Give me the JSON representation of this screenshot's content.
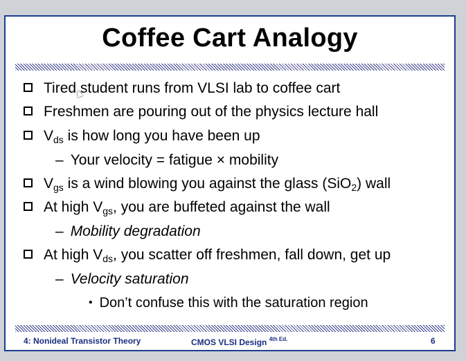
{
  "slide": {
    "title": "Coffee Cart Analogy",
    "lines": [
      {
        "level": 1,
        "pre": "Tired student runs from VLSI lab to coffee cart"
      },
      {
        "level": 1,
        "pre": "Freshmen are pouring out of the physics lecture hall"
      },
      {
        "level": 1,
        "pre": "V",
        "sub": "ds",
        "post": " is how long you have been up"
      },
      {
        "level": 2,
        "pre": "Your velocity = fatigue × mobility"
      },
      {
        "level": 1,
        "pre": "V",
        "sub": "gs",
        "post": " is a wind blowing you against the glass (SiO",
        "sub2": "2",
        "post2": ") wall"
      },
      {
        "level": 1,
        "pre": "At high V",
        "sub": "gs",
        "post": ", you are buffeted against the wall"
      },
      {
        "level": 2,
        "pre": "Mobility degradation",
        "italic": true
      },
      {
        "level": 1,
        "pre": "At high V",
        "sub": "ds",
        "post": ", you scatter off freshmen, fall down, get up"
      },
      {
        "level": 2,
        "pre": "Velocity saturation",
        "italic": true
      },
      {
        "level": 3,
        "pre": "Don’t confuse this with the saturation region"
      }
    ]
  },
  "footer": {
    "chapter": "4: Nonideal Transistor Theory",
    "book": "CMOS VLSI Design",
    "edition": "4th Ed.",
    "page": "6"
  },
  "colors": {
    "border": "#1a3d8f",
    "footer_text": "#1a2f80"
  }
}
